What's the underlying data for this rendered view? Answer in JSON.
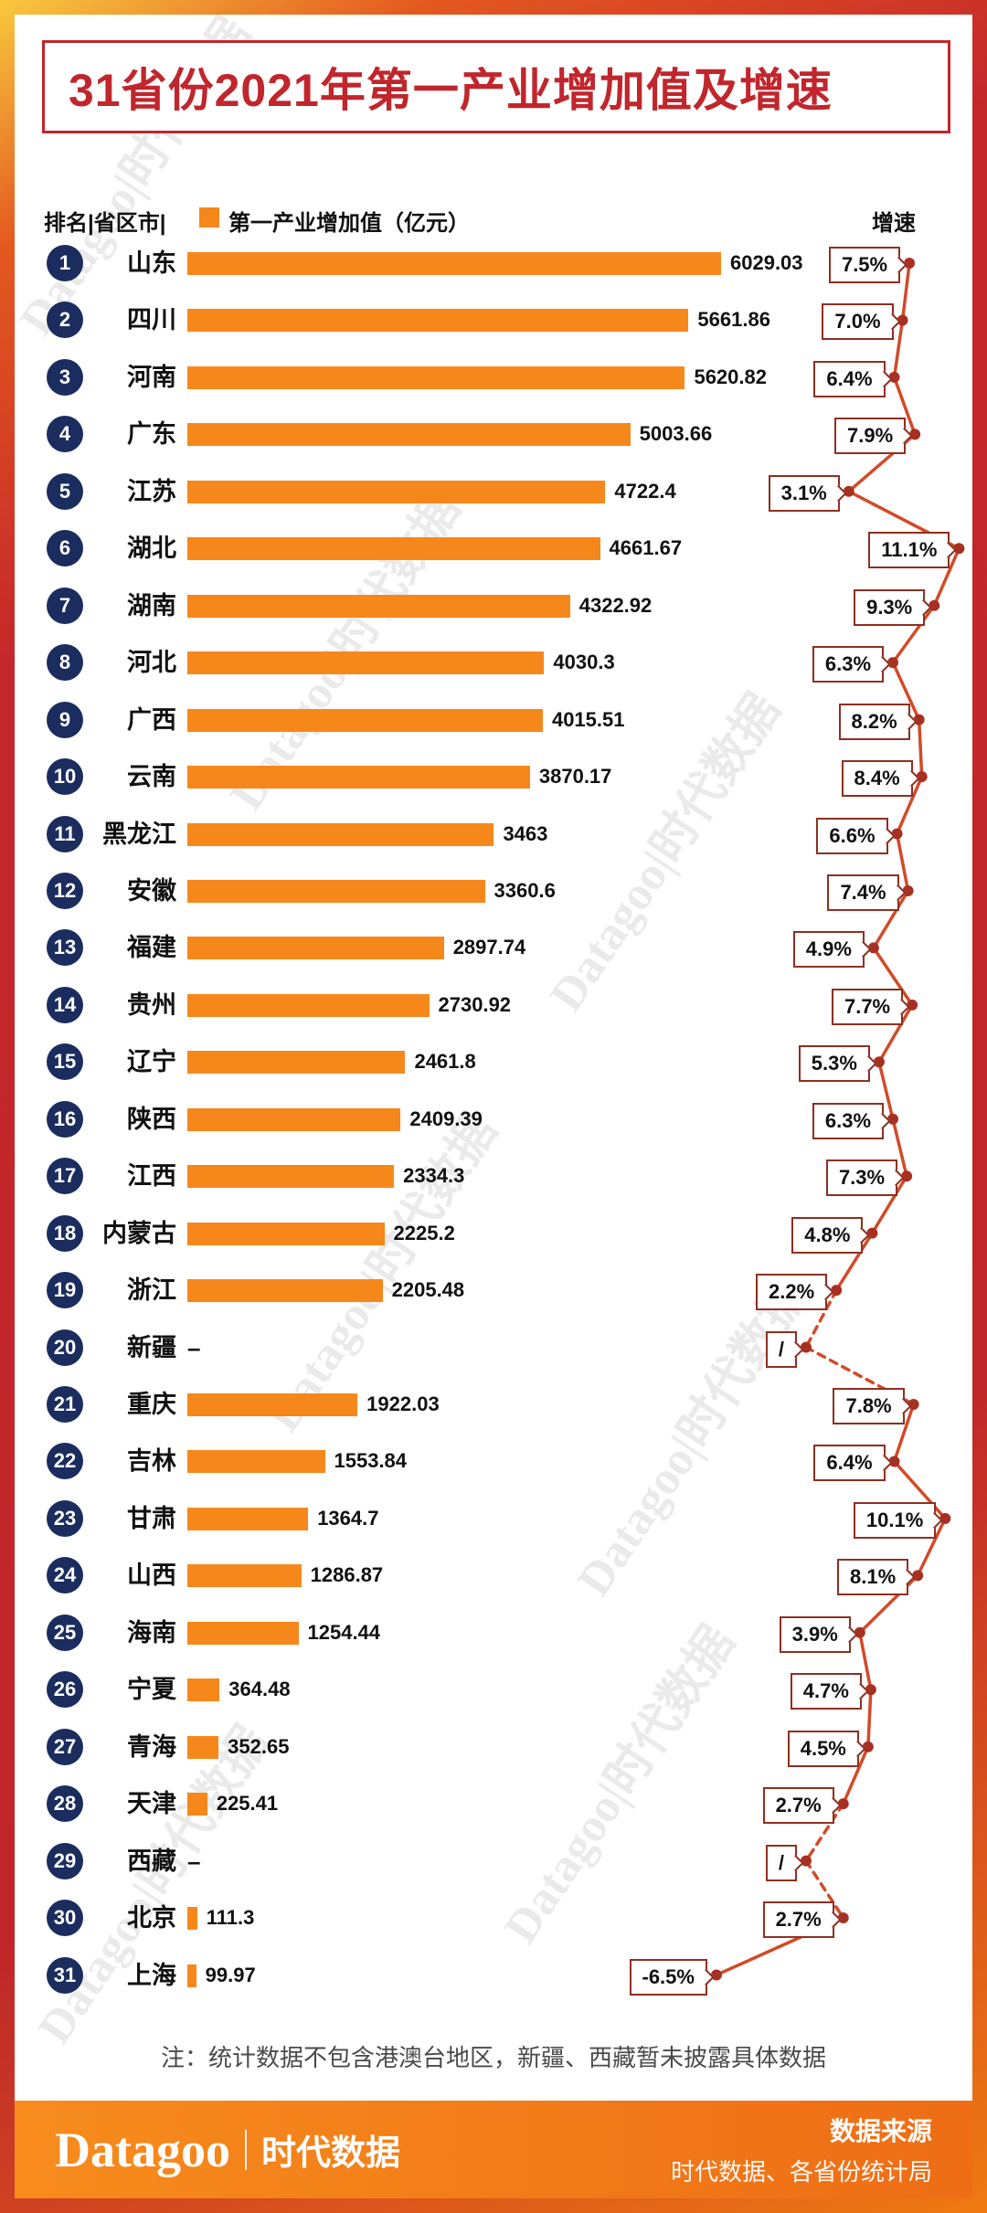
{
  "title": "31省份2021年第一产业增加值及增速",
  "header": {
    "rank_region": "排名|省区市|",
    "value_legend": "第一产业增加值（亿元）",
    "growth_label": "增速"
  },
  "watermark": "Datagoo|时代数据",
  "note": "注：统计数据不包含港澳台地区，新疆、西藏暂未披露具体数据",
  "footer": {
    "brand": "Datagoo",
    "brand_cn": "时代数据",
    "source_label": "数据来源",
    "source_text": "时代数据、各省份统计局"
  },
  "colors": {
    "bar": "#f6881b",
    "rank_circle": "#1b2d5f",
    "title_red": "#c0262c",
    "line": "#d14b28",
    "dot": "#a83022",
    "box_border": "#8e2f20"
  },
  "chart_data": {
    "type": "bar",
    "title": "31省份2021年第一产业增加值及增速",
    "categories": [
      "山东",
      "四川",
      "河南",
      "广东",
      "江苏",
      "湖北",
      "湖南",
      "河北",
      "广西",
      "云南",
      "黑龙江",
      "安徽",
      "福建",
      "贵州",
      "辽宁",
      "陕西",
      "江西",
      "内蒙古",
      "浙江",
      "新疆",
      "重庆",
      "吉林",
      "甘肃",
      "山西",
      "海南",
      "宁夏",
      "青海",
      "天津",
      "西藏",
      "北京",
      "上海"
    ],
    "series": [
      {
        "name": "第一产业增加值（亿元）",
        "values": [
          6029.03,
          5661.86,
          5620.82,
          5003.66,
          4722.4,
          4661.67,
          4322.92,
          4030.3,
          4015.51,
          3870.17,
          3463,
          3360.6,
          2897.74,
          2730.92,
          2461.8,
          2409.39,
          2334.3,
          2225.2,
          2205.48,
          null,
          1922.03,
          1553.84,
          1364.7,
          1286.87,
          1254.44,
          364.48,
          352.65,
          225.41,
          null,
          111.3,
          99.97
        ]
      },
      {
        "name": "增速(%)",
        "values": [
          7.5,
          7.0,
          6.4,
          7.9,
          3.1,
          11.1,
          9.3,
          6.3,
          8.2,
          8.4,
          6.6,
          7.4,
          4.9,
          7.7,
          5.3,
          6.3,
          7.3,
          4.8,
          2.2,
          null,
          7.8,
          6.4,
          10.1,
          8.1,
          3.9,
          4.7,
          4.5,
          2.7,
          null,
          2.7,
          -6.5
        ]
      }
    ],
    "note": "注：统计数据不包含港澳台地区，新疆、西藏暂未披露具体数据"
  },
  "rows": [
    {
      "rank": 1,
      "province": "山东",
      "value": "6029.03",
      "value_num": 6029.03,
      "growth": "7.5%",
      "growth_num": 7.5
    },
    {
      "rank": 2,
      "province": "四川",
      "value": "5661.86",
      "value_num": 5661.86,
      "growth": "7.0%",
      "growth_num": 7.0
    },
    {
      "rank": 3,
      "province": "河南",
      "value": "5620.82",
      "value_num": 5620.82,
      "growth": "6.4%",
      "growth_num": 6.4
    },
    {
      "rank": 4,
      "province": "广东",
      "value": "5003.66",
      "value_num": 5003.66,
      "growth": "7.9%",
      "growth_num": 7.9
    },
    {
      "rank": 5,
      "province": "江苏",
      "value": "4722.4",
      "value_num": 4722.4,
      "growth": "3.1%",
      "growth_num": 3.1
    },
    {
      "rank": 6,
      "province": "湖北",
      "value": "4661.67",
      "value_num": 4661.67,
      "growth": "11.1%",
      "growth_num": 11.1
    },
    {
      "rank": 7,
      "province": "湖南",
      "value": "4322.92",
      "value_num": 4322.92,
      "growth": "9.3%",
      "growth_num": 9.3
    },
    {
      "rank": 8,
      "province": "河北",
      "value": "4030.3",
      "value_num": 4030.3,
      "growth": "6.3%",
      "growth_num": 6.3
    },
    {
      "rank": 9,
      "province": "广西",
      "value": "4015.51",
      "value_num": 4015.51,
      "growth": "8.2%",
      "growth_num": 8.2
    },
    {
      "rank": 10,
      "province": "云南",
      "value": "3870.17",
      "value_num": 3870.17,
      "growth": "8.4%",
      "growth_num": 8.4
    },
    {
      "rank": 11,
      "province": "黑龙江",
      "value": "3463",
      "value_num": 3463,
      "growth": "6.6%",
      "growth_num": 6.6
    },
    {
      "rank": 12,
      "province": "安徽",
      "value": "3360.6",
      "value_num": 3360.6,
      "growth": "7.4%",
      "growth_num": 7.4
    },
    {
      "rank": 13,
      "province": "福建",
      "value": "2897.74",
      "value_num": 2897.74,
      "growth": "4.9%",
      "growth_num": 4.9
    },
    {
      "rank": 14,
      "province": "贵州",
      "value": "2730.92",
      "value_num": 2730.92,
      "growth": "7.7%",
      "growth_num": 7.7
    },
    {
      "rank": 15,
      "province": "辽宁",
      "value": "2461.8",
      "value_num": 2461.8,
      "growth": "5.3%",
      "growth_num": 5.3
    },
    {
      "rank": 16,
      "province": "陕西",
      "value": "2409.39",
      "value_num": 2409.39,
      "growth": "6.3%",
      "growth_num": 6.3
    },
    {
      "rank": 17,
      "province": "江西",
      "value": "2334.3",
      "value_num": 2334.3,
      "growth": "7.3%",
      "growth_num": 7.3
    },
    {
      "rank": 18,
      "province": "内蒙古",
      "value": "2225.2",
      "value_num": 2225.2,
      "growth": "4.8%",
      "growth_num": 4.8
    },
    {
      "rank": 19,
      "province": "浙江",
      "value": "2205.48",
      "value_num": 2205.48,
      "growth": "2.2%",
      "growth_num": 2.2
    },
    {
      "rank": 20,
      "province": "新疆",
      "value": "–",
      "value_num": null,
      "growth": "/",
      "growth_num": null
    },
    {
      "rank": 21,
      "province": "重庆",
      "value": "1922.03",
      "value_num": 1922.03,
      "growth": "7.8%",
      "growth_num": 7.8
    },
    {
      "rank": 22,
      "province": "吉林",
      "value": "1553.84",
      "value_num": 1553.84,
      "growth": "6.4%",
      "growth_num": 6.4
    },
    {
      "rank": 23,
      "province": "甘肃",
      "value": "1364.7",
      "value_num": 1364.7,
      "growth": "10.1%",
      "growth_num": 10.1
    },
    {
      "rank": 24,
      "province": "山西",
      "value": "1286.87",
      "value_num": 1286.87,
      "growth": "8.1%",
      "growth_num": 8.1
    },
    {
      "rank": 25,
      "province": "海南",
      "value": "1254.44",
      "value_num": 1254.44,
      "growth": "3.9%",
      "growth_num": 3.9
    },
    {
      "rank": 26,
      "province": "宁夏",
      "value": "364.48",
      "value_num": 364.48,
      "growth": "4.7%",
      "growth_num": 4.7
    },
    {
      "rank": 27,
      "province": "青海",
      "value": "352.65",
      "value_num": 352.65,
      "growth": "4.5%",
      "growth_num": 4.5
    },
    {
      "rank": 28,
      "province": "天津",
      "value": "225.41",
      "value_num": 225.41,
      "growth": "2.7%",
      "growth_num": 2.7
    },
    {
      "rank": 29,
      "province": "西藏",
      "value": "–",
      "value_num": null,
      "growth": "/",
      "growth_num": null
    },
    {
      "rank": 30,
      "province": "北京",
      "value": "111.3",
      "value_num": 111.3,
      "growth": "2.7%",
      "growth_num": 2.7
    },
    {
      "rank": 31,
      "province": "上海",
      "value": "99.97",
      "value_num": 99.97,
      "growth": "-6.5%",
      "growth_num": -6.5
    }
  ]
}
